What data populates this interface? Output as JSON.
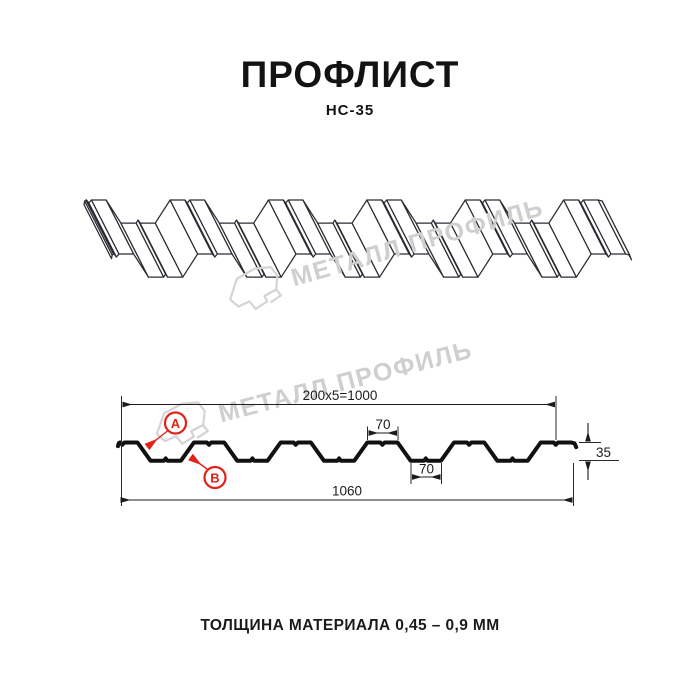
{
  "page": {
    "title": "ПРОФЛИСТ",
    "subtitle": "НС-35",
    "footer_note": "ТОЛЩИНА МАТЕРИАЛА 0,45 – 0,9 ММ"
  },
  "watermark": {
    "brand_text": "МЕТАЛЛ ПРОФИЛЬ"
  },
  "drawing": {
    "profile_name": "НС-35",
    "dimensions": {
      "pitch_total": "200x5=1000",
      "crest_width": "70",
      "valley_width": "70",
      "height": "35",
      "overall_width": "1060"
    },
    "side_markers": {
      "a": "A",
      "b": "B"
    },
    "colors": {
      "accent_red": "#e2231a",
      "line_dark": "#2b2b33",
      "profile_black": "#111111",
      "watermark_gray": "#cfcfcf"
    }
  }
}
